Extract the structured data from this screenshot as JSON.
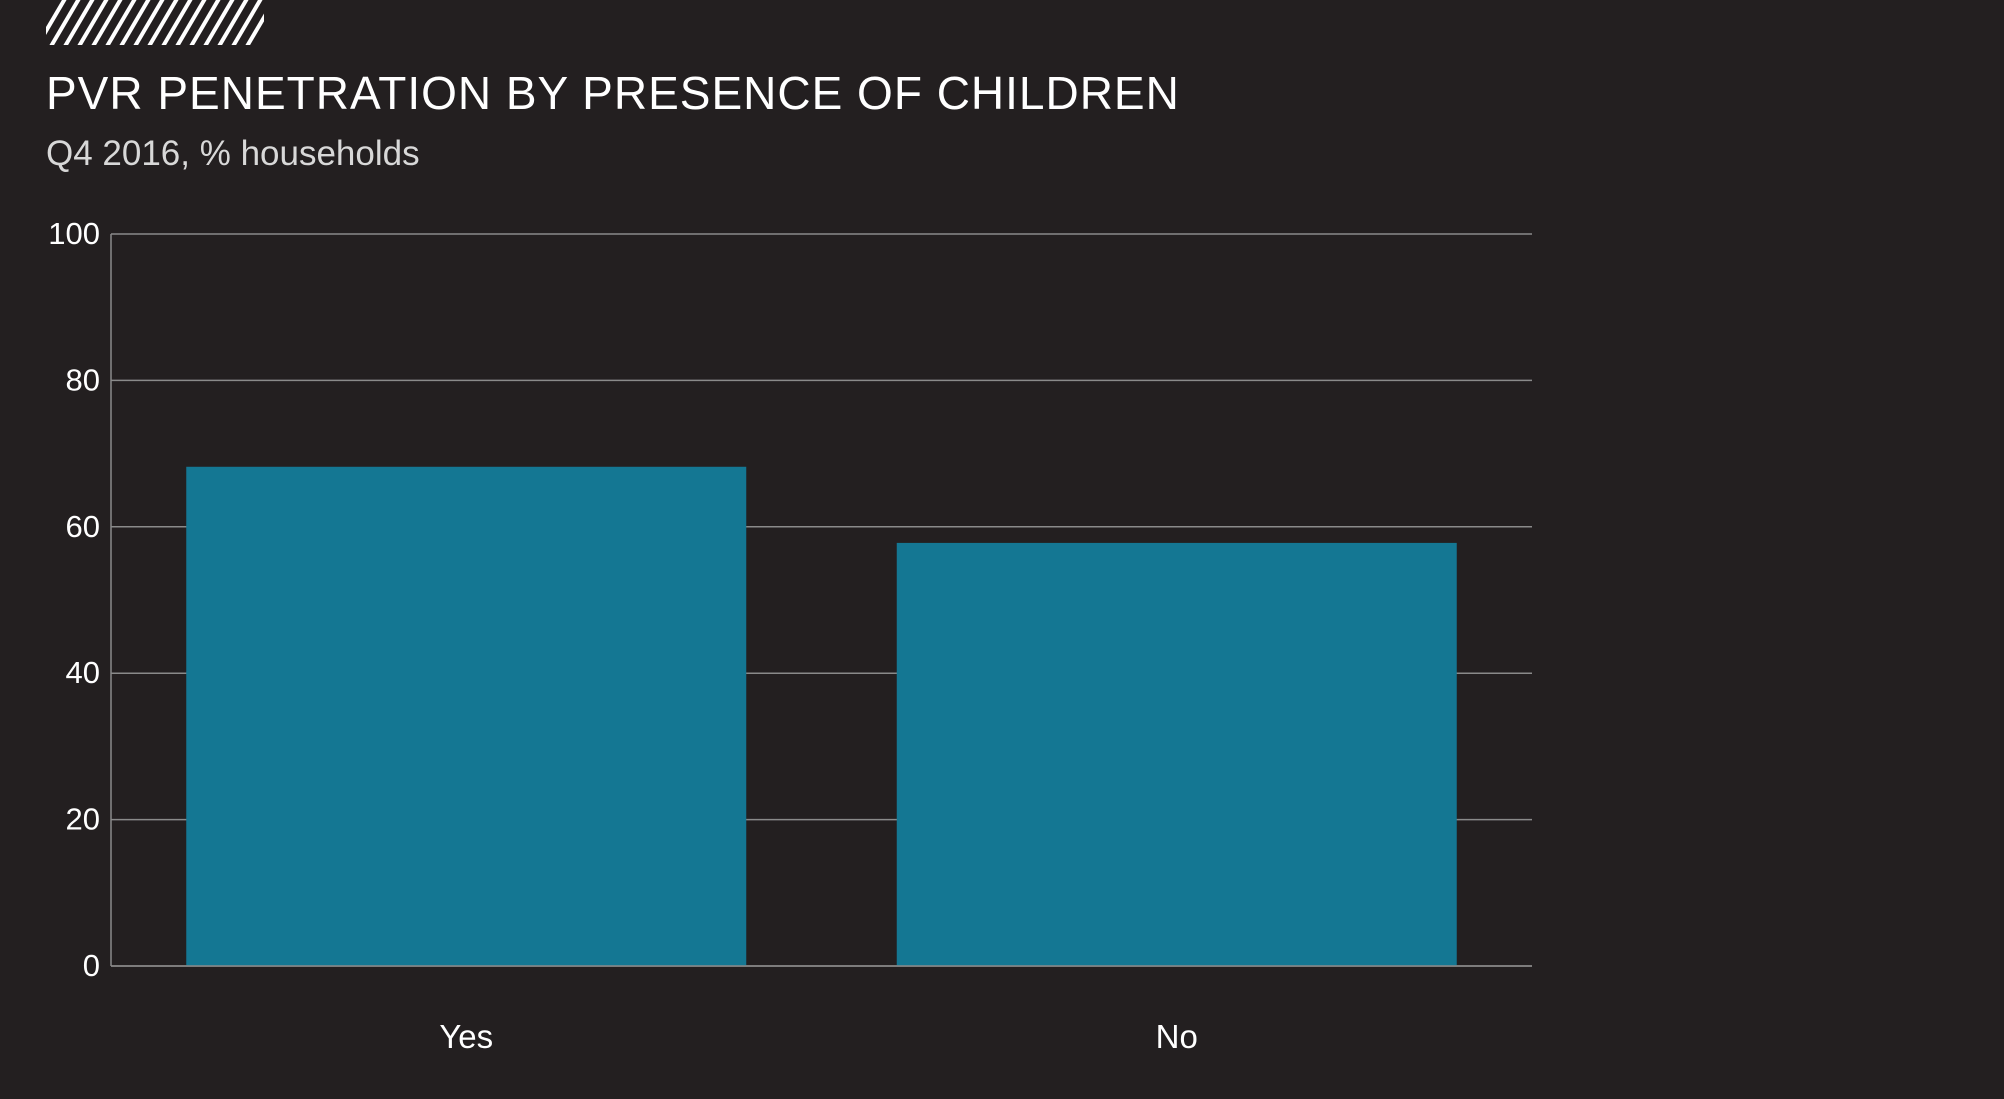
{
  "header": {
    "title": "PVR PENETRATION BY PRESENCE OF CHILDREN",
    "subtitle": "Q4 2016, % households"
  },
  "colors": {
    "background": "#231f20",
    "bar": "#147793",
    "grid": "#8a8a8a",
    "text": "#ffffff"
  },
  "chart_data": {
    "type": "bar",
    "title": "PVR PENETRATION BY PRESENCE OF CHILDREN",
    "subtitle": "Q4 2016, % households",
    "categories": [
      "Yes",
      "No"
    ],
    "values": [
      68.2,
      57.8
    ],
    "xlabel": "",
    "ylabel": "",
    "ylim": [
      0,
      100
    ],
    "yticks": [
      0,
      20,
      40,
      60,
      80,
      100
    ],
    "grid": true,
    "legend": "none"
  }
}
